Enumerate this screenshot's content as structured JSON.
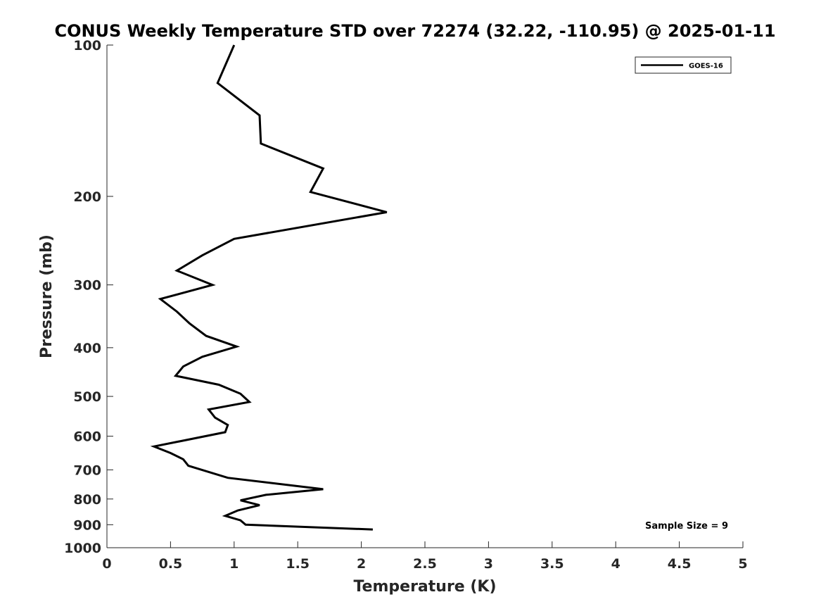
{
  "chart_data": {
    "type": "line",
    "title": "CONUS Weekly Temperature STD over 72274 (32.22, -110.95) @ 2025-01-11",
    "xlabel": "Temperature (K)",
    "ylabel": "Pressure (mb)",
    "xlim": [
      0,
      5
    ],
    "ylim": [
      100,
      1000
    ],
    "yscale": "log",
    "y_reversed": true,
    "x_ticks": [
      0,
      0.5,
      1,
      1.5,
      2,
      2.5,
      3,
      3.5,
      4,
      4.5,
      5
    ],
    "x_tick_labels": [
      "0",
      "0.5",
      "1",
      "1.5",
      "2",
      "2.5",
      "3",
      "3.5",
      "4",
      "4.5",
      "5"
    ],
    "y_ticks": [
      100,
      200,
      300,
      400,
      500,
      600,
      700,
      800,
      900,
      1000
    ],
    "y_tick_labels": [
      "100",
      "200",
      "300",
      "400",
      "500",
      "600",
      "700",
      "800",
      "900",
      "1000"
    ],
    "grid": false,
    "legend_position": "top-right",
    "annotation": "Sample Size = 9",
    "series": [
      {
        "name": "GOES-16",
        "color": "#000000",
        "x": [
          1.0,
          0.87,
          1.2,
          1.21,
          1.7,
          1.6,
          2.2,
          1.0,
          0.75,
          0.55,
          0.83,
          0.42,
          0.55,
          0.65,
          0.78,
          1.02,
          0.75,
          0.6,
          0.54,
          0.88,
          1.05,
          1.12,
          0.8,
          0.85,
          0.95,
          0.93,
          0.37,
          0.5,
          0.6,
          0.64,
          0.95,
          1.7,
          1.25,
          1.05,
          1.2,
          1.03,
          0.93,
          1.05,
          1.09,
          2.09
        ],
        "y": [
          100,
          119,
          138,
          157,
          176,
          196,
          215,
          243,
          262,
          281,
          300,
          320,
          339,
          358,
          379,
          398,
          417,
          436,
          455,
          474,
          494,
          513,
          531,
          551,
          570,
          589,
          629,
          648,
          667,
          687,
          726,
          765,
          785,
          805,
          823,
          843,
          864,
          882,
          900,
          920
        ]
      }
    ]
  }
}
